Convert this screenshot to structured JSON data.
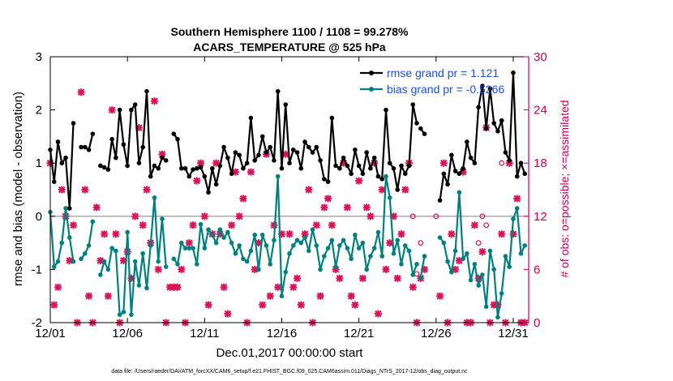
{
  "chart_data": {
    "type": "line",
    "title": [
      "Southern Hemisphere 1100 / 1108 = 99.278%",
      "ACARS_TEMPERATURE @ 525 hPa"
    ],
    "xlabel": "Dec.01,2017 00:00:00 start",
    "ylabel_left": "rmse and bias (model - observation)",
    "ylabel_right": "# of obs: o=possible; ×=assimilated",
    "footnote": "data file: /Users/raeder/DAI/ATM_forcXX/CAM6_setup/f.e21.FHIST_BGC.f09_025.CAM6assim.011/Diags_NTrS_2017-12/obs_diag_output.nc",
    "x_ticks": [
      "12/01",
      "12/06",
      "12/11",
      "12/16",
      "12/21",
      "12/26",
      "12/31"
    ],
    "x_tick_days": [
      1,
      6,
      11,
      16,
      21,
      26,
      31
    ],
    "y_left_ticks": [
      "-2",
      "-1",
      "0",
      "1",
      "2",
      "3"
    ],
    "y_right_ticks": [
      "0",
      "6",
      "12",
      "18",
      "24",
      "30"
    ],
    "xlim": [
      1,
      32
    ],
    "ylim_left": [
      -2,
      3
    ],
    "ylim_right": [
      0,
      30
    ],
    "zero_line": 0,
    "colors": {
      "rmse": "#000000",
      "bias": "#008080",
      "obs": "#dd1155",
      "legend_text": "#1e50dc",
      "right_axis": "#cc0055",
      "zero_line": "#aaaaaa"
    },
    "legend": {
      "placement": "top-right",
      "entries": [
        "rmse grand pr = 1.121",
        "bias grand pr = -0.5266"
      ]
    },
    "series": [
      {
        "name": "rmse grand pr = 1.121",
        "segments": [
          {
            "x": [
              1.0,
              1.25,
              1.5,
              1.75,
              2.0,
              2.25,
              2.5,
              2.75,
              3.0,
              3.25,
              3.5,
              3.75,
              4.0,
              4.25,
              4.5,
              4.75,
              5.0,
              5.25,
              5.5,
              5.75,
              6.0,
              6.25,
              6.5,
              6.75,
              7.0,
              7.25,
              7.5,
              7.75,
              8.0,
              8.25,
              8.5,
              8.75,
              9.0,
              9.25,
              9.5,
              9.75,
              10.0,
              10.25,
              10.5,
              10.75,
              11.0,
              11.25,
              11.5,
              11.75,
              12.0,
              12.25,
              12.5,
              12.75,
              13.0,
              13.25,
              13.5,
              13.75,
              14.0,
              14.25,
              14.5,
              14.75,
              15.0,
              15.25,
              15.5,
              15.75,
              16.0,
              16.25,
              16.5,
              16.75,
              17.0,
              17.25,
              17.5,
              17.75,
              18.0,
              18.25,
              18.5,
              18.75,
              19.0,
              19.25,
              19.5,
              19.75,
              20.0,
              20.25,
              20.5,
              20.75,
              21.0,
              21.25,
              21.5,
              21.75,
              22.0,
              22.25,
              22.5,
              22.75,
              23.0,
              23.25,
              23.5,
              23.75,
              24.0,
              24.25,
              24.5,
              24.75
            ],
            "y": [
              1.25,
              0.65,
              1.4,
              1.0,
              1.1,
              0.15,
              1.75,
              null,
              1.3,
              1.3,
              1.25,
              1.55,
              null,
              0.95,
              0.92,
              0.88,
              1.45,
              1.1,
              2.0,
              1.35,
              0.95,
              2.0,
              2.1,
              1.0,
              1.3,
              2.35,
              0.75,
              0.95,
              0.9,
              1.1,
              1.05,
              null,
              1.55,
              1.45,
              0.9,
              0.9,
              0.75,
              0.88,
              0.9,
              0.92,
              0.75,
              0.45,
              0.9,
              0.6,
              0.95,
              1.3,
              1.1,
              0.8,
              1.2,
              1.15,
              0.9,
              1.0,
              1.85,
              1.05,
              1.15,
              1.5,
              1.2,
              1.3,
              1.05,
              2.35,
              0.9,
              2.1,
              1.0,
              1.25,
              1.2,
              0.9,
              1.4,
              1.3,
              1.2,
              1.3,
              1.05,
              0.7,
              0.65,
              1.85,
              0.95,
              0.9,
              1.1,
              0.95,
              0.8,
              1.25,
              0.95,
              0.8,
              1.2,
              0.9,
              1.1,
              0.75,
              0.7,
              2.0,
              1.0,
              0.9,
              0.5,
              0.95,
              0.8,
              0.95,
              2.1,
              1.75
            ]
          },
          {
            "x": [
              25.0,
              25.25
            ],
            "y": [
              1.65,
              1.55
            ]
          },
          {
            "x": [
              26.25,
              26.5,
              26.75,
              27.0,
              27.25,
              27.5,
              27.75,
              28.0,
              28.25,
              28.5,
              28.75,
              29.0,
              29.25,
              29.5,
              29.75,
              30.0,
              30.25,
              30.5,
              30.75,
              31.0,
              31.25,
              31.5,
              31.75
            ],
            "y": [
              0.3,
              0.8,
              0.6,
              1.15,
              0.85,
              0.8,
              0.9,
              1.4,
              1.1,
              1.0,
              2.05,
              2.45,
              1.65,
              2.4,
              1.75,
              1.6,
              1.8,
              1.2,
              1.05,
              2.7,
              0.75,
              1.0,
              0.8
            ]
          }
        ]
      },
      {
        "name": "bias grand pr = -0.5266",
        "segments": [
          {
            "x": [
              1.0,
              1.25,
              1.5,
              1.75,
              2.0,
              2.25,
              2.5,
              2.75,
              3.0,
              3.25,
              3.5,
              3.75,
              4.0,
              4.25,
              4.5,
              4.75,
              5.0,
              5.25,
              5.5,
              5.75,
              6.0,
              6.25,
              6.5,
              6.75,
              7.0,
              7.25,
              7.5,
              7.75,
              8.0,
              8.25,
              8.5,
              8.75,
              9.0,
              9.25,
              9.5,
              9.75,
              10.0,
              10.25,
              10.5,
              10.75,
              11.0,
              11.25,
              11.5,
              11.75,
              12.0,
              12.25,
              12.5,
              12.75,
              13.0,
              13.25,
              13.5,
              13.75,
              14.0,
              14.25,
              14.5,
              14.75,
              15.0,
              15.25,
              15.5,
              15.75,
              16.0,
              16.25,
              16.5,
              16.75,
              17.0,
              17.25,
              17.5,
              17.75,
              18.0,
              18.25,
              18.5,
              18.75,
              19.0,
              19.25,
              19.5,
              19.75,
              20.0,
              20.25,
              20.5,
              20.75,
              21.0,
              21.25,
              21.5,
              21.75,
              22.0,
              22.25,
              22.5,
              22.75,
              23.0,
              23.25,
              23.5,
              23.75,
              24.0,
              24.25,
              24.5,
              24.75
            ],
            "y": [
              0.08,
              -0.95,
              -0.85,
              -0.5,
              0.15,
              -0.4,
              -0.85,
              null,
              -0.8,
              -0.7,
              -0.55,
              -0.1,
              null,
              -1.1,
              -0.85,
              -1.0,
              -0.6,
              -0.65,
              -1.85,
              -1.8,
              -0.3,
              -1.85,
              -0.85,
              -1.3,
              -0.7,
              -1.35,
              -0.55,
              0.35,
              -0.85,
              -0.05,
              -0.95,
              null,
              -0.8,
              -0.9,
              -0.5,
              -0.6,
              -0.6,
              -0.6,
              -0.9,
              -0.15,
              -0.6,
              -0.25,
              -0.35,
              -0.5,
              -0.25,
              -0.4,
              -0.3,
              -0.5,
              -0.7,
              -0.55,
              -0.8,
              -0.85,
              -0.65,
              -0.35,
              -1.0,
              -0.35,
              -0.55,
              -0.9,
              -0.45,
              0.75,
              -1.5,
              -1.05,
              -0.7,
              -0.55,
              -0.45,
              -0.5,
              -0.4,
              -0.65,
              -0.25,
              -0.55,
              -1.0,
              -0.75,
              -0.6,
              -0.45,
              -0.95,
              -0.55,
              -0.45,
              -0.6,
              -0.8,
              -0.35,
              -0.6,
              -0.5,
              -1.0,
              -0.75,
              -0.6,
              -0.3,
              -0.75,
              0.75,
              0.35,
              -0.7,
              -0.45,
              -0.9,
              -0.55,
              -0.65,
              -1.1,
              -0.9
            ]
          },
          {
            "x": [
              25.0,
              25.25
            ],
            "y": [
              -1.15,
              -0.75
            ]
          },
          {
            "x": [
              26.25,
              26.5,
              26.75,
              27.0,
              27.25,
              27.5,
              27.75,
              28.0,
              28.25,
              28.5,
              28.75,
              29.0,
              29.25,
              29.5,
              29.75,
              30.0,
              30.25,
              30.5,
              30.75,
              31.0,
              31.25,
              31.5,
              31.75
            ],
            "y": [
              -0.4,
              -0.5,
              -0.85,
              -1.05,
              -0.65,
              0.45,
              -0.8,
              -0.7,
              -1.2,
              -0.9,
              -1.3,
              -1.1,
              -1.7,
              -0.65,
              -1.0,
              -1.9,
              -1.45,
              -0.75,
              -0.95,
              -0.05,
              0.15,
              -0.7,
              -0.55
            ]
          }
        ]
      },
      {
        "name": "# of obs assimilated",
        "axis": "right",
        "points": [
          [
            1.0,
            18
          ],
          [
            1.25,
            2
          ],
          [
            1.5,
            4
          ],
          [
            1.75,
            15
          ],
          [
            2.0,
            12
          ],
          [
            2.25,
            7
          ],
          [
            2.5,
            11
          ],
          [
            2.75,
            0
          ],
          [
            3.0,
            26
          ],
          [
            3.25,
            15
          ],
          [
            3.5,
            3
          ],
          [
            3.75,
            0
          ],
          [
            4.0,
            13
          ],
          [
            4.25,
            7
          ],
          [
            4.5,
            10
          ],
          [
            4.75,
            3
          ],
          [
            5.0,
            24
          ],
          [
            5.25,
            10
          ],
          [
            5.5,
            0
          ],
          [
            5.75,
            7
          ],
          [
            6.0,
            8
          ],
          [
            6.25,
            5
          ],
          [
            6.5,
            12
          ],
          [
            6.75,
            22
          ],
          [
            7.0,
            11
          ],
          [
            7.25,
            15
          ],
          [
            7.5,
            9
          ],
          [
            7.75,
            25
          ],
          [
            8.0,
            6
          ],
          [
            8.25,
            19
          ],
          [
            8.5,
            0
          ],
          [
            8.75,
            4
          ],
          [
            9.0,
            4
          ],
          [
            9.25,
            4
          ],
          [
            9.5,
            6
          ],
          [
            9.75,
            0
          ],
          [
            10.0,
            9
          ],
          [
            10.25,
            11
          ],
          [
            10.5,
            16
          ],
          [
            10.75,
            18
          ],
          [
            11.0,
            12
          ],
          [
            11.25,
            2
          ],
          [
            11.5,
            10
          ],
          [
            11.75,
            18
          ],
          [
            12.0,
            10
          ],
          [
            12.25,
            4
          ],
          [
            12.5,
            1
          ],
          [
            12.75,
            11
          ],
          [
            13.0,
            17
          ],
          [
            13.25,
            12
          ],
          [
            13.5,
            14
          ],
          [
            13.75,
            0
          ],
          [
            14.0,
            17
          ],
          [
            14.25,
            6
          ],
          [
            14.5,
            9
          ],
          [
            14.75,
            2
          ],
          [
            15.0,
            19
          ],
          [
            15.25,
            3
          ],
          [
            15.5,
            11
          ],
          [
            15.75,
            4
          ],
          [
            16.0,
            10
          ],
          [
            16.25,
            19
          ],
          [
            16.5,
            10
          ],
          [
            16.75,
            4
          ],
          [
            17.0,
            5
          ],
          [
            17.25,
            2
          ],
          [
            17.5,
            10
          ],
          [
            17.75,
            15
          ],
          [
            18.0,
            0
          ],
          [
            18.25,
            11
          ],
          [
            18.5,
            3
          ],
          [
            18.75,
            13
          ],
          [
            19.0,
            14
          ],
          [
            19.25,
            11
          ],
          [
            19.5,
            6
          ],
          [
            19.75,
            5
          ],
          [
            20.0,
            18
          ],
          [
            20.25,
            13
          ],
          [
            20.5,
            3
          ],
          [
            20.75,
            2
          ],
          [
            21.0,
            16
          ],
          [
            21.25,
            5
          ],
          [
            21.5,
            13
          ],
          [
            21.75,
            12
          ],
          [
            22.0,
            18
          ],
          [
            22.25,
            1
          ],
          [
            22.5,
            15
          ],
          [
            22.75,
            6
          ],
          [
            23.0,
            9
          ],
          [
            23.25,
            12
          ],
          [
            23.5,
            5
          ],
          [
            23.75,
            10
          ],
          [
            24.0,
            15
          ],
          [
            24.25,
            18
          ],
          [
            24.5,
            4
          ],
          [
            24.75,
            0
          ],
          [
            25.0,
            5
          ],
          [
            25.25,
            6
          ],
          [
            26.25,
            3
          ],
          [
            26.5,
            18
          ],
          [
            26.75,
            0
          ],
          [
            27.0,
            10
          ],
          [
            27.25,
            6
          ],
          [
            27.5,
            7
          ],
          [
            27.75,
            17
          ],
          [
            28.0,
            0
          ],
          [
            28.25,
            0
          ],
          [
            28.5,
            11
          ],
          [
            28.75,
            5
          ],
          [
            29.0,
            8
          ],
          [
            29.25,
            22
          ],
          [
            29.5,
            0
          ],
          [
            29.75,
            2
          ],
          [
            30.0,
            2
          ],
          [
            30.25,
            10
          ],
          [
            30.5,
            0
          ],
          [
            30.75,
            18
          ],
          [
            31.0,
            10
          ],
          [
            31.25,
            14
          ],
          [
            31.5,
            0
          ],
          [
            31.75,
            0
          ]
        ]
      },
      {
        "name": "# of obs possible",
        "axis": "right",
        "points": [
          [
            24.5,
            12
          ],
          [
            24.75,
            5.5
          ],
          [
            25.0,
            9
          ],
          [
            26.0,
            12
          ],
          [
            28.75,
            9
          ],
          [
            29.0,
            12
          ],
          [
            29.25,
            11
          ],
          [
            30.25,
            18
          ]
        ]
      }
    ]
  }
}
